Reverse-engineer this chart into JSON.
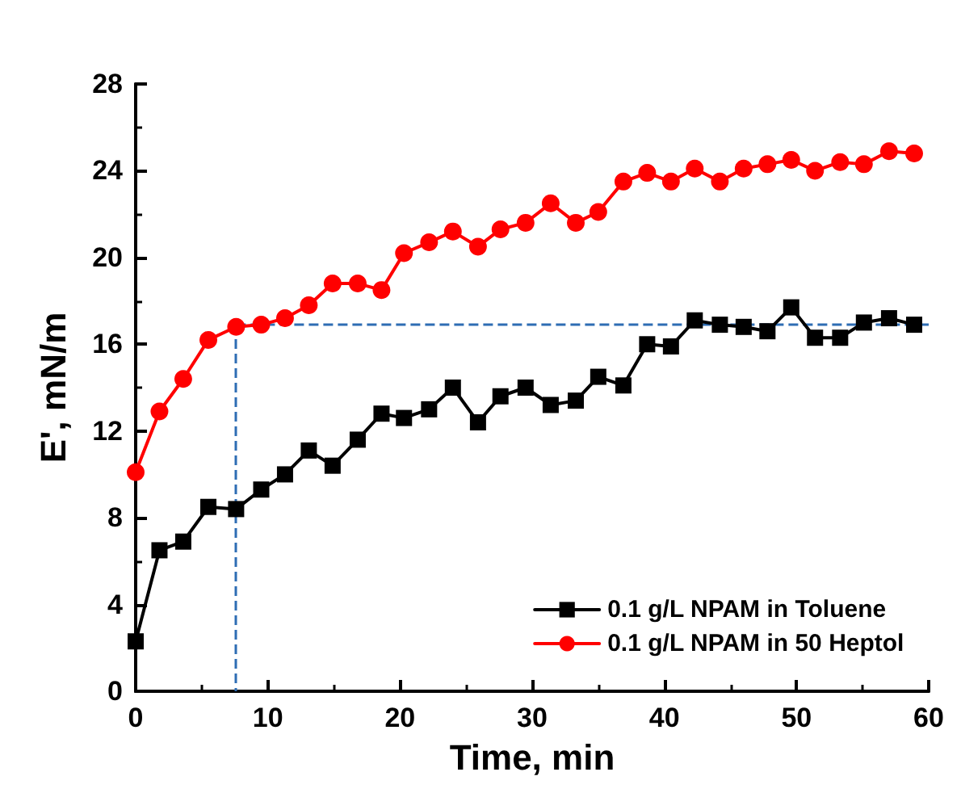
{
  "chart_data": {
    "type": "line",
    "xlabel": "Time, min",
    "ylabel": "E', mN/m",
    "x": [
      0,
      1.8,
      3.6,
      5.5,
      7.6,
      9.5,
      11.3,
      13.1,
      14.9,
      16.8,
      18.6,
      20.3,
      22.2,
      24.0,
      25.9,
      27.6,
      29.5,
      31.4,
      33.3,
      35.0,
      36.9,
      38.7,
      40.5,
      42.3,
      44.2,
      46.0,
      47.8,
      49.6,
      51.4,
      53.3,
      55.1,
      57.0,
      58.9
    ],
    "series": [
      {
        "name": "0.1 g/L NPAM in Toluene",
        "color": "#000000",
        "marker": "square",
        "values": [
          2.3,
          6.5,
          6.9,
          8.5,
          8.4,
          9.3,
          10.0,
          11.1,
          10.4,
          11.6,
          12.8,
          12.6,
          13.0,
          14.0,
          12.4,
          13.6,
          14.0,
          13.2,
          13.4,
          14.5,
          14.1,
          16.0,
          15.9,
          17.1,
          16.9,
          16.8,
          16.6,
          17.7,
          16.3,
          16.3,
          17.0,
          17.2,
          16.9
        ]
      },
      {
        "name": "0.1 g/L NPAM in 50 Heptol",
        "color": "#ff0000",
        "marker": "circle",
        "values": [
          10.1,
          12.9,
          14.4,
          16.2,
          16.8,
          16.9,
          17.2,
          17.8,
          18.8,
          18.8,
          18.5,
          20.2,
          20.7,
          21.2,
          20.5,
          21.3,
          21.6,
          22.5,
          21.6,
          22.1,
          23.5,
          23.9,
          23.5,
          24.1,
          23.5,
          24.1,
          24.3,
          24.5,
          24.0,
          24.4,
          24.3,
          24.9,
          24.8
        ]
      }
    ],
    "xlim": [
      0,
      60
    ],
    "xticks": [
      0,
      10,
      20,
      30,
      40,
      50,
      60
    ],
    "ylim": [
      0,
      28
    ],
    "yticks": [
      0,
      4,
      8,
      12,
      16,
      20,
      24,
      28
    ],
    "ref_lines": [
      {
        "axis": "x",
        "value": 7.6,
        "color": "#2e6db4",
        "line_style": "dashed"
      },
      {
        "axis": "y",
        "value": 16.9,
        "color": "#2e6db4",
        "line_style": "dashed"
      }
    ],
    "grid": false,
    "legend": "bottom right",
    "line_style": "solid"
  }
}
